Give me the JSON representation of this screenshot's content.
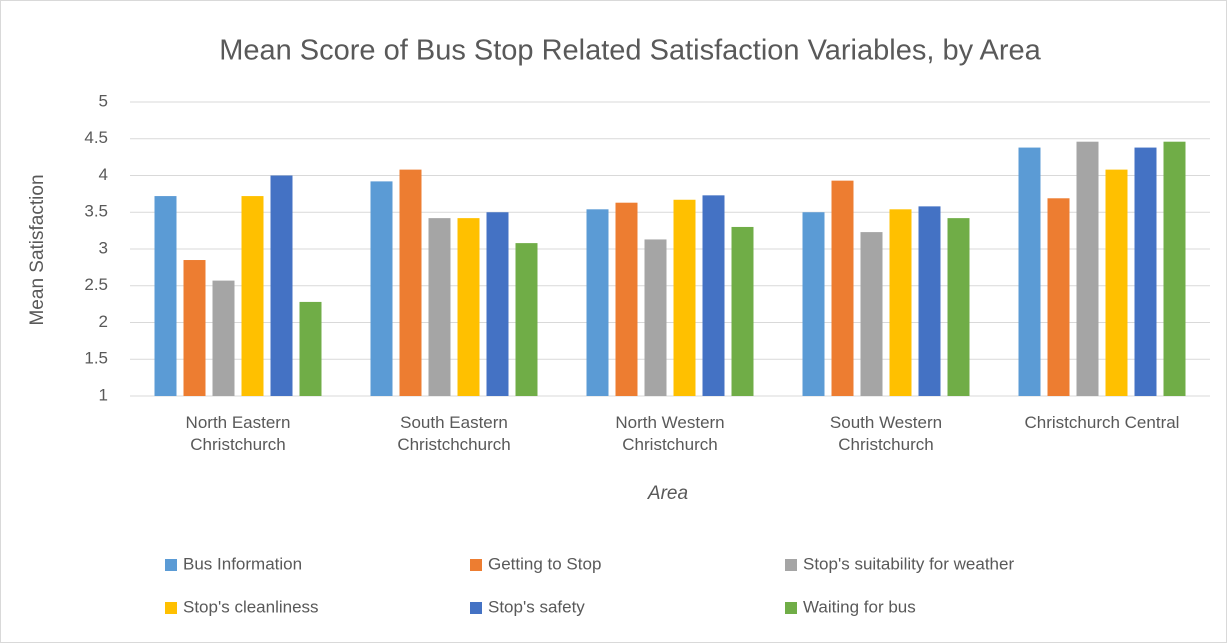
{
  "chart_data": {
    "type": "bar",
    "title": "Mean Score of Bus Stop Related Satisfaction Variables, by Area",
    "x_label": "Area",
    "y_label": "Mean  Satisfaction",
    "categories": [
      "North Eastern Christchurch",
      "South Eastern Christchchurch",
      "North Western Christchurch",
      "South Western Christchurch",
      "Christchurch Central"
    ],
    "series": [
      {
        "name": "Bus Information",
        "color": "#5b9bd5",
        "values": [
          3.72,
          3.92,
          3.54,
          3.5,
          4.38
        ]
      },
      {
        "name": "Getting to Stop",
        "color": "#ed7d31",
        "values": [
          2.85,
          4.08,
          3.63,
          3.93,
          3.69
        ]
      },
      {
        "name": "Stop's suitability for weather",
        "color": "#a5a5a5",
        "values": [
          2.57,
          3.42,
          3.13,
          3.23,
          4.46
        ]
      },
      {
        "name": "Stop's cleanliness",
        "color": "#ffc000",
        "values": [
          3.72,
          3.42,
          3.67,
          3.54,
          4.08
        ]
      },
      {
        "name": "Stop's safety",
        "color": "#4472c4",
        "values": [
          4.0,
          3.5,
          3.73,
          3.58,
          4.38
        ]
      },
      {
        "name": "Waiting for bus",
        "color": "#70ad47",
        "values": [
          2.28,
          3.08,
          3.3,
          3.42,
          4.46
        ]
      }
    ],
    "ylim": [
      1,
      5
    ],
    "yticks": [
      1,
      1.5,
      2,
      2.5,
      3,
      3.5,
      4,
      4.5,
      5
    ],
    "grid": true,
    "legend": "bottom"
  }
}
